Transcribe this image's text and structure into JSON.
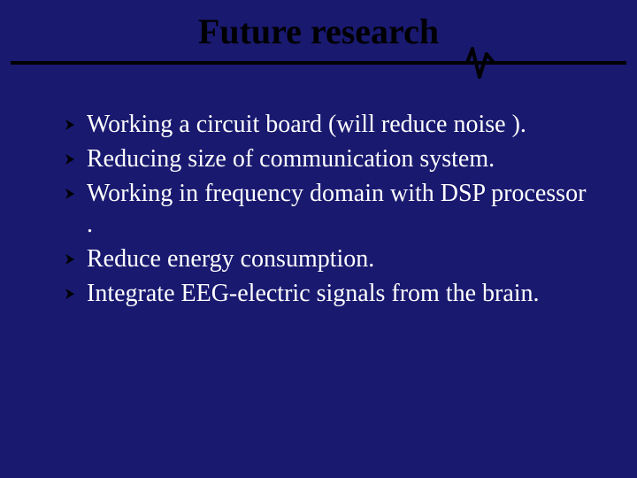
{
  "slide": {
    "title": "Future research",
    "title_fontsize": 40,
    "title_color": "#000000",
    "background_color": "#191970",
    "underline_color": "#000000",
    "pulse_stroke": "#000000",
    "bullet_fontsize": 28,
    "bullet_color": "#ffffff",
    "bullet_marker_fill": "#000000",
    "bullets": [
      "Working a circuit board (will reduce noise ).",
      "Reducing size of communication system.",
      "Working in frequency domain with DSP processor .",
      "Reduce energy consumption.",
      "Integrate EEG-electric signals from the brain."
    ]
  }
}
